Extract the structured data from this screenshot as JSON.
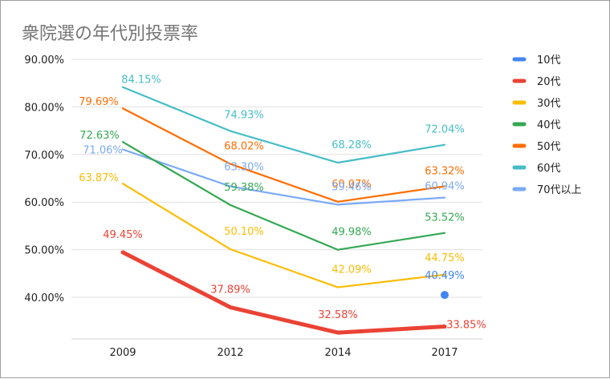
{
  "chart_data": {
    "type": "line",
    "title": "衆院選の年代別投票率",
    "xlabel": "",
    "ylabel": "",
    "categories": [
      "2009",
      "2012",
      "2014",
      "2017"
    ],
    "ylim": [
      32.0,
      90.0
    ],
    "yticks": [
      "40.00%",
      "50.00%",
      "60.00%",
      "70.00%",
      "80.00%",
      "90.00%"
    ],
    "ytick_values": [
      40,
      50,
      60,
      70,
      80,
      90
    ],
    "grid": true,
    "legend_position": "right",
    "series": [
      {
        "name": "10代",
        "color": "#4285F4",
        "values": [
          null,
          null,
          null,
          40.49
        ],
        "labels": [
          "",
          "",
          "",
          "40.49%"
        ]
      },
      {
        "name": "20代",
        "color": "#EA4335",
        "values": [
          49.45,
          37.89,
          32.58,
          33.85
        ],
        "labels": [
          "49.45%",
          "37.89%",
          "32.58%",
          "33.85%"
        ]
      },
      {
        "name": "30代",
        "color": "#FBBC04",
        "values": [
          63.87,
          50.1,
          42.09,
          44.75
        ],
        "labels": [
          "63.87%",
          "50.10%",
          "42.09%",
          "44.75%"
        ]
      },
      {
        "name": "40代",
        "color": "#34A853",
        "values": [
          72.63,
          59.38,
          49.98,
          53.52
        ],
        "labels": [
          "72.63%",
          "59.38%",
          "49.98%",
          "53.52%"
        ]
      },
      {
        "name": "50代",
        "color": "#FF6D01",
        "values": [
          79.69,
          68.02,
          60.07,
          63.32
        ],
        "labels": [
          "79.69%",
          "68.02%",
          "60.07%",
          "63.32%"
        ]
      },
      {
        "name": "60代",
        "color": "#46BDC6",
        "values": [
          84.15,
          74.93,
          68.28,
          72.04
        ],
        "labels": [
          "84.15%",
          "74.93%",
          "68.28%",
          "72.04%"
        ]
      },
      {
        "name": "70代以上",
        "color": "#7BAAF7",
        "values": [
          71.06,
          63.3,
          59.46,
          60.94
        ],
        "labels": [
          "71.06%",
          "63.30%",
          "59.46%",
          "60.94%"
        ]
      }
    ]
  }
}
